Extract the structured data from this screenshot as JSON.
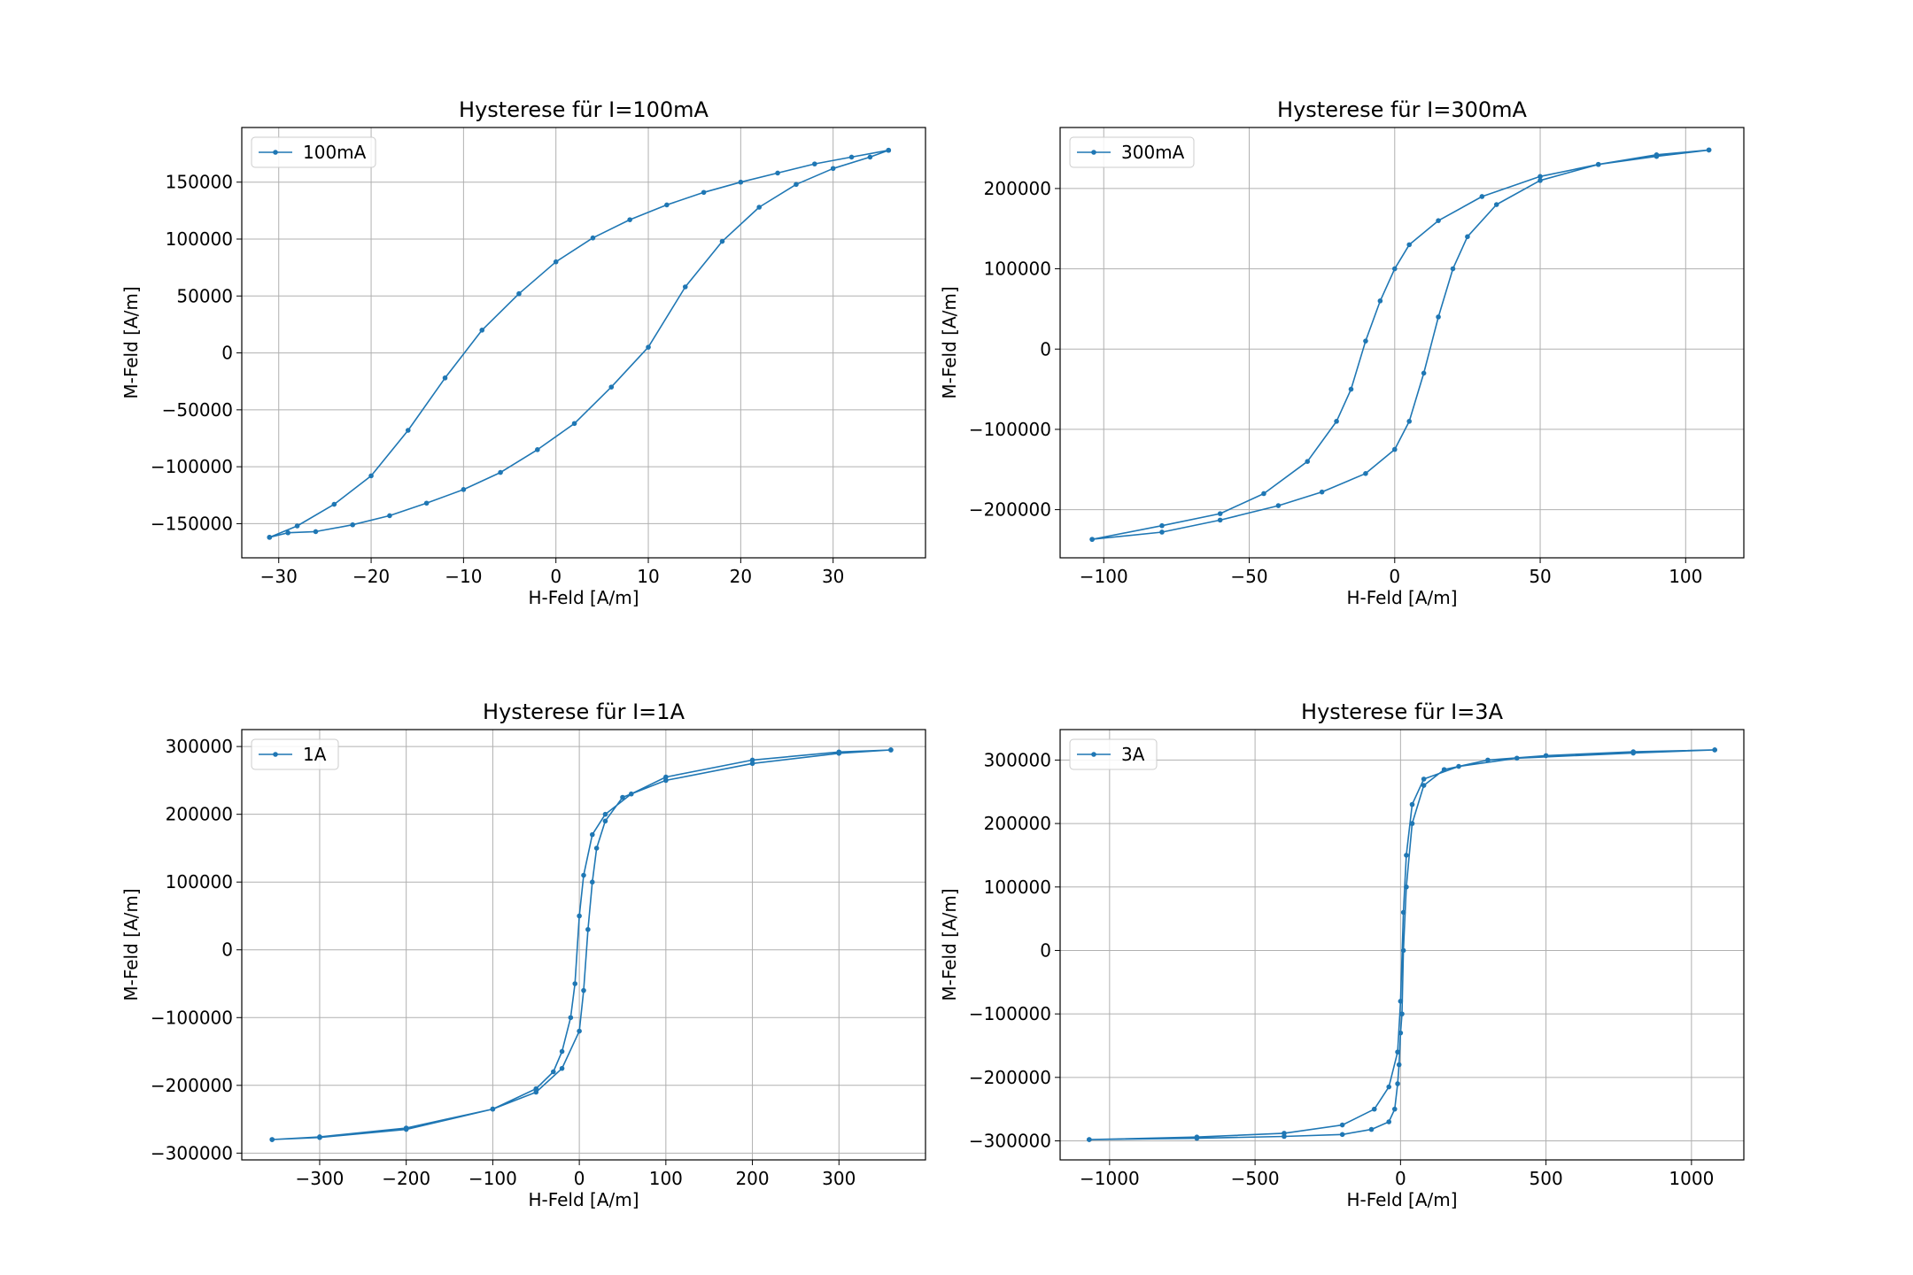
{
  "figure": {
    "background": "#ffffff",
    "line_color": "#1f77b4",
    "grid_color": "#b0b0b0"
  },
  "chart_data": [
    {
      "type": "line",
      "title": "Hysterese für I=100mA",
      "xlabel": "H-Feld [A/m]",
      "ylabel": "M-Feld [A/m]",
      "xlim": [
        -34,
        40
      ],
      "ylim": [
        -180000,
        198000
      ],
      "xticks": [
        -30,
        -20,
        -10,
        0,
        10,
        20,
        30
      ],
      "xtick_labels": [
        "−30",
        "−20",
        "−10",
        "0",
        "10",
        "20",
        "30"
      ],
      "yticks": [
        -150000,
        -100000,
        -50000,
        0,
        50000,
        100000,
        150000
      ],
      "ytick_labels": [
        "−150000",
        "−100000",
        "−50000",
        "0",
        "50000",
        "100000",
        "150000"
      ],
      "grid": true,
      "legend": "top-left",
      "series": [
        {
          "name": "100mA",
          "marker": "dot",
          "x": [
            36,
            32,
            28,
            24,
            20,
            16,
            12,
            8,
            4,
            0,
            -4,
            -8,
            -12,
            -16,
            -20,
            -24,
            -28,
            -31,
            -31,
            -29,
            -26,
            -22,
            -18,
            -14,
            -10,
            -6,
            -2,
            2,
            6,
            10,
            14,
            18,
            22,
            26,
            30,
            34,
            36
          ],
          "y": [
            178000,
            172000,
            166000,
            158000,
            150000,
            141000,
            130000,
            117000,
            101000,
            80000,
            52000,
            20000,
            -22000,
            -68000,
            -108000,
            -133000,
            -152000,
            -162000,
            -162000,
            -158000,
            -157000,
            -151000,
            -143000,
            -132000,
            -120000,
            -105000,
            -85000,
            -62000,
            -30000,
            5000,
            58000,
            98000,
            128000,
            148000,
            162000,
            172000,
            178000
          ]
        }
      ]
    },
    {
      "type": "line",
      "title": "Hysterese für I=300mA",
      "xlabel": "H-Feld [A/m]",
      "ylabel": "M-Feld [A/m]",
      "xlim": [
        -115,
        120
      ],
      "ylim": [
        -260000,
        276000
      ],
      "xticks": [
        -100,
        -50,
        0,
        50,
        100
      ],
      "xtick_labels": [
        "−100",
        "−50",
        "0",
        "50",
        "100"
      ],
      "yticks": [
        -200000,
        -100000,
        0,
        100000,
        200000
      ],
      "ytick_labels": [
        "−200000",
        "−100000",
        "0",
        "100000",
        "200000"
      ],
      "grid": true,
      "legend": "top-left",
      "series": [
        {
          "name": "300mA",
          "marker": "dot",
          "x": [
            108,
            90,
            70,
            50,
            30,
            15,
            5,
            0,
            -5,
            -10,
            -15,
            -20,
            -30,
            -45,
            -60,
            -80,
            -104,
            -104,
            -80,
            -60,
            -40,
            -25,
            -10,
            0,
            5,
            10,
            15,
            20,
            25,
            35,
            50,
            70,
            90,
            108
          ],
          "y": [
            248000,
            240000,
            230000,
            215000,
            190000,
            160000,
            130000,
            100000,
            60000,
            10000,
            -50000,
            -90000,
            -140000,
            -180000,
            -205000,
            -220000,
            -237000,
            -237000,
            -228000,
            -213000,
            -195000,
            -178000,
            -155000,
            -125000,
            -90000,
            -30000,
            40000,
            100000,
            140000,
            180000,
            210000,
            230000,
            242000,
            248000
          ]
        }
      ]
    },
    {
      "type": "line",
      "title": "Hysterese für I=1A",
      "xlabel": "H-Feld [A/m]",
      "ylabel": "M-Feld [A/m]",
      "xlim": [
        -390,
        400
      ],
      "ylim": [
        -310000,
        325000
      ],
      "xticks": [
        -300,
        -200,
        -100,
        0,
        100,
        200,
        300
      ],
      "xtick_labels": [
        "−300",
        "−200",
        "−100",
        "0",
        "100",
        "200",
        "300"
      ],
      "yticks": [
        -300000,
        -200000,
        -100000,
        0,
        100000,
        200000,
        300000
      ],
      "ytick_labels": [
        "−300000",
        "−200000",
        "−100000",
        "0",
        "100000",
        "200000",
        "300000"
      ],
      "grid": true,
      "legend": "top-left",
      "series": [
        {
          "name": "1A",
          "marker": "dot",
          "x": [
            360,
            300,
            200,
            100,
            60,
            30,
            15,
            5,
            0,
            -5,
            -10,
            -20,
            -30,
            -50,
            -100,
            -200,
            -300,
            -355,
            -355,
            -300,
            -200,
            -100,
            -50,
            -20,
            0,
            5,
            10,
            15,
            20,
            30,
            50,
            100,
            200,
            300,
            360
          ],
          "y": [
            295000,
            292000,
            280000,
            255000,
            230000,
            200000,
            170000,
            110000,
            50000,
            -50000,
            -100000,
            -150000,
            -180000,
            -205000,
            -235000,
            -265000,
            -277000,
            -280000,
            -280000,
            -276000,
            -263000,
            -235000,
            -210000,
            -175000,
            -120000,
            -60000,
            30000,
            100000,
            150000,
            190000,
            225000,
            250000,
            275000,
            290000,
            295000
          ]
        }
      ]
    },
    {
      "type": "line",
      "title": "Hysterese für I=3A",
      "xlabel": "H-Feld [A/m]",
      "ylabel": "M-Feld [A/m]",
      "xlim": [
        -1170,
        1180
      ],
      "ylim": [
        -330000,
        348000
      ],
      "xticks": [
        -1000,
        -500,
        0,
        500,
        1000
      ],
      "xtick_labels": [
        "−1000",
        "−500",
        "0",
        "500",
        "1000"
      ],
      "yticks": [
        -300000,
        -200000,
        -100000,
        0,
        100000,
        200000,
        300000
      ],
      "ytick_labels": [
        "−300000",
        "−200000",
        "−100000",
        "0",
        "100000",
        "200000",
        "300000"
      ],
      "grid": true,
      "legend": "top-left",
      "series": [
        {
          "name": "3A",
          "marker": "dot",
          "x": [
            1080,
            800,
            500,
            300,
            150,
            80,
            40,
            20,
            10,
            5,
            0,
            -5,
            -10,
            -20,
            -40,
            -100,
            -200,
            -400,
            -700,
            -1070,
            -1070,
            -700,
            -400,
            -200,
            -90,
            -40,
            -10,
            0,
            10,
            20,
            40,
            80,
            200,
            400,
            800,
            1080
          ],
          "y": [
            316000,
            313000,
            307000,
            300000,
            285000,
            260000,
            200000,
            100000,
            0,
            -100000,
            -130000,
            -180000,
            -210000,
            -250000,
            -270000,
            -282000,
            -290000,
            -293000,
            -296000,
            -298000,
            -298000,
            -294000,
            -288000,
            -275000,
            -250000,
            -215000,
            -160000,
            -80000,
            60000,
            150000,
            230000,
            270000,
            290000,
            303000,
            311000,
            316000
          ]
        }
      ]
    }
  ]
}
